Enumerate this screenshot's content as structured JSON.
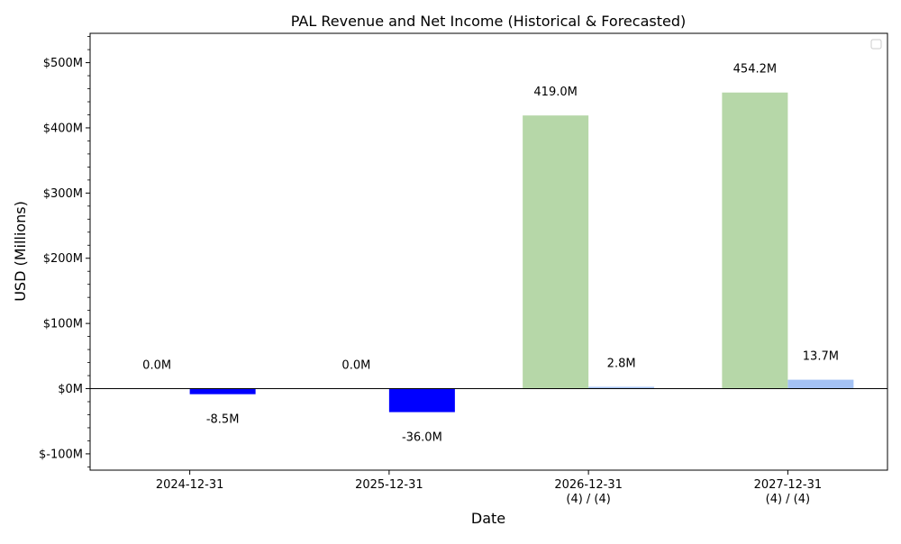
{
  "chart_data": {
    "type": "bar",
    "title": "PAL Revenue and Net Income (Historical & Forecasted)",
    "xlabel": "Date",
    "ylabel": "USD (Millions)",
    "categories": [
      {
        "date": "2024-12-31",
        "note": ""
      },
      {
        "date": "2025-12-31",
        "note": ""
      },
      {
        "date": "2026-12-31",
        "note": "(4) / (4)"
      },
      {
        "date": "2027-12-31",
        "note": "(4) / (4)"
      }
    ],
    "series": [
      {
        "values": [
          0.0,
          0.0,
          419.0,
          454.2
        ],
        "labels": [
          "0.0M",
          "0.0M",
          "419.0M",
          "454.2M"
        ],
        "colors": [
          "#b6d7a8",
          "#b6d7a8",
          "#b6d7a8",
          "#b6d7a8"
        ]
      },
      {
        "values": [
          -8.5,
          -36.0,
          2.8,
          13.7
        ],
        "labels": [
          "-8.5M",
          "-36.0M",
          "2.8M",
          "13.7M"
        ],
        "colors": [
          "#0000ff",
          "#0000ff",
          "#a4c2f4",
          "#a4c2f4"
        ]
      }
    ],
    "yticks": [
      -100,
      0,
      100,
      200,
      300,
      400,
      500
    ],
    "ytick_labels": [
      "$-100M",
      "$0M",
      "$100M",
      "$200M",
      "$300M",
      "$400M",
      "$500M"
    ],
    "ylim": [
      -125,
      545
    ],
    "grid": false,
    "legend": "top-right, empty"
  }
}
